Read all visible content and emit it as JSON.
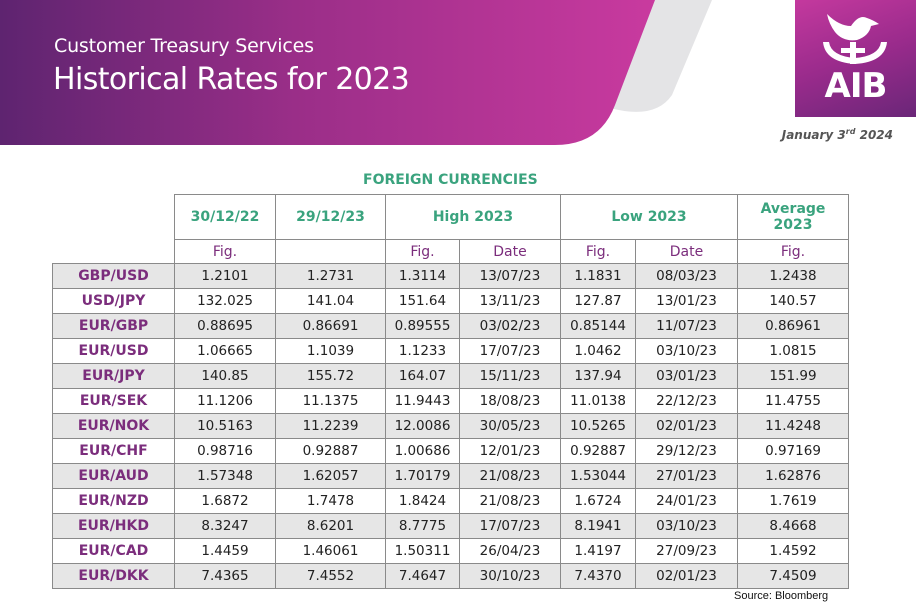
{
  "header": {
    "subtitle": "Customer Treasury Services",
    "title": "Historical Rates for 2023",
    "logo_text": "AIB",
    "date_prefix": "January 3",
    "date_suffix": "rd",
    "date_year": " 2024"
  },
  "colors": {
    "brand_purple": "#7b2d7c",
    "brand_magenta": "#c4399e",
    "header_green": "#3aa37e",
    "row_shade": "#e6e6e6"
  },
  "table": {
    "section_title": "FOREIGN CURRENCIES",
    "headers": {
      "col1": "30/12/22",
      "col2": "29/12/23",
      "high": "High 2023",
      "low": "Low 2023",
      "avg_line1": "Average",
      "avg_line2": "2023"
    },
    "subheaders": {
      "col1": "Fig.",
      "col2": "",
      "high_fig": "Fig.",
      "high_date": "Date",
      "low_fig": "Fig.",
      "low_date": "Date",
      "avg_fig": "Fig."
    },
    "rows": [
      {
        "pair": "GBP/USD",
        "c1": "1.2101",
        "c2": "1.2731",
        "high": "1.3114",
        "high_date": "13/07/23",
        "low": "1.1831",
        "low_date": "08/03/23",
        "avg": "1.2438"
      },
      {
        "pair": "USD/JPY",
        "c1": "132.025",
        "c2": "141.04",
        "high": "151.64",
        "high_date": "13/11/23",
        "low": "127.87",
        "low_date": "13/01/23",
        "avg": "140.57"
      },
      {
        "pair": "EUR/GBP",
        "c1": "0.88695",
        "c2": "0.86691",
        "high": "0.89555",
        "high_date": "03/02/23",
        "low": "0.85144",
        "low_date": "11/07/23",
        "avg": "0.86961"
      },
      {
        "pair": "EUR/USD",
        "c1": "1.06665",
        "c2": "1.1039",
        "high": "1.1233",
        "high_date": "17/07/23",
        "low": "1.0462",
        "low_date": "03/10/23",
        "avg": "1.0815"
      },
      {
        "pair": "EUR/JPY",
        "c1": "140.85",
        "c2": "155.72",
        "high": "164.07",
        "high_date": "15/11/23",
        "low": "137.94",
        "low_date": "03/01/23",
        "avg": "151.99"
      },
      {
        "pair": "EUR/SEK",
        "c1": "11.1206",
        "c2": "11.1375",
        "high": "11.9443",
        "high_date": "18/08/23",
        "low": "11.0138",
        "low_date": "22/12/23",
        "avg": "11.4755"
      },
      {
        "pair": "EUR/NOK",
        "c1": "10.5163",
        "c2": "11.2239",
        "high": "12.0086",
        "high_date": "30/05/23",
        "low": "10.5265",
        "low_date": "02/01/23",
        "avg": "11.4248"
      },
      {
        "pair": "EUR/CHF",
        "c1": "0.98716",
        "c2": "0.92887",
        "high": "1.00686",
        "high_date": "12/01/23",
        "low": "0.92887",
        "low_date": "29/12/23",
        "avg": "0.97169"
      },
      {
        "pair": "EUR/AUD",
        "c1": "1.57348",
        "c2": "1.62057",
        "high": "1.70179",
        "high_date": "21/08/23",
        "low": "1.53044",
        "low_date": "27/01/23",
        "avg": "1.62876"
      },
      {
        "pair": "EUR/NZD",
        "c1": "1.6872",
        "c2": "1.7478",
        "high": "1.8424",
        "high_date": "21/08/23",
        "low": "1.6724",
        "low_date": "24/01/23",
        "avg": "1.7619"
      },
      {
        "pair": "EUR/HKD",
        "c1": "8.3247",
        "c2": "8.6201",
        "high": "8.7775",
        "high_date": "17/07/23",
        "low": "8.1941",
        "low_date": "03/10/23",
        "avg": "8.4668"
      },
      {
        "pair": "EUR/CAD",
        "c1": "1.4459",
        "c2": "1.46061",
        "high": "1.50311",
        "high_date": "26/04/23",
        "low": "1.4197",
        "low_date": "27/09/23",
        "avg": "1.4592"
      },
      {
        "pair": "EUR/DKK",
        "c1": "7.4365",
        "c2": "7.4552",
        "high": "7.4647",
        "high_date": "30/10/23",
        "low": "7.4370",
        "low_date": "02/01/23",
        "avg": "7.4509"
      }
    ]
  },
  "footer": {
    "source": "Source:  Bloomberg"
  }
}
